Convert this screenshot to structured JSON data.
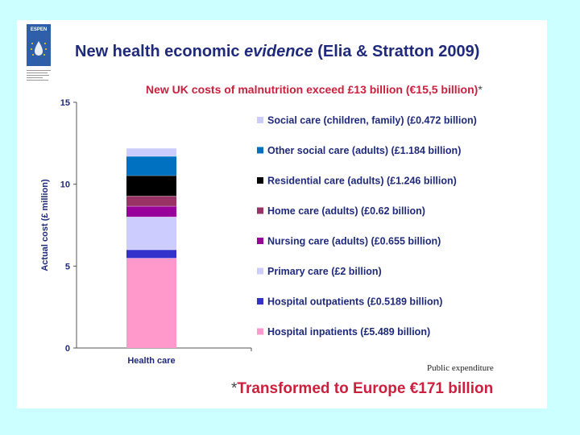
{
  "logo": {
    "text": "ESPEN"
  },
  "title": {
    "part1": "New health economic ",
    "part2": "evidence",
    "part3": " (Elia & Stratton 2009)"
  },
  "subtitle": {
    "text": "New UK costs of malnutrition exceed £13 billion (€15,5 billion)",
    "asterisk": "*"
  },
  "source": "Public expenditure",
  "footnote": {
    "asterisk": "*",
    "text": "Transformed to Europe €171 billion"
  },
  "chart_data": {
    "type": "bar",
    "stacked": true,
    "categories": [
      "Health care"
    ],
    "ylabel": "Actual cost (£ million)",
    "xlabel": "",
    "ylim": [
      0,
      15
    ],
    "yticks": [
      0,
      5,
      10,
      15
    ],
    "grid": false,
    "legend_position": "right",
    "series": [
      {
        "name": "Hospital inpatients (£5.489 billion)",
        "values": [
          5.489
        ],
        "color": "#ff99cc"
      },
      {
        "name": "Hospital outpatients (£0.5189 billion)",
        "values": [
          0.5189
        ],
        "color": "#3333cc"
      },
      {
        "name": "Primary care (£2 billion)",
        "values": [
          2.0
        ],
        "color": "#ccccff"
      },
      {
        "name": "Nursing care (adults) (£0.655 billion)",
        "values": [
          0.655
        ],
        "color": "#990099"
      },
      {
        "name": "Home care (adults) (£0.62 billion)",
        "values": [
          0.62
        ],
        "color": "#993366"
      },
      {
        "name": "Residential care (adults) (£1.246 billion)",
        "values": [
          1.246
        ],
        "color": "#000000"
      },
      {
        "name": "Other social care (adults) (£1.184 billion)",
        "values": [
          1.184
        ],
        "color": "#0070c0"
      },
      {
        "name": "Social care (children, family) (£0.472 billion)",
        "values": [
          0.472
        ],
        "color": "#ccccff"
      }
    ]
  }
}
